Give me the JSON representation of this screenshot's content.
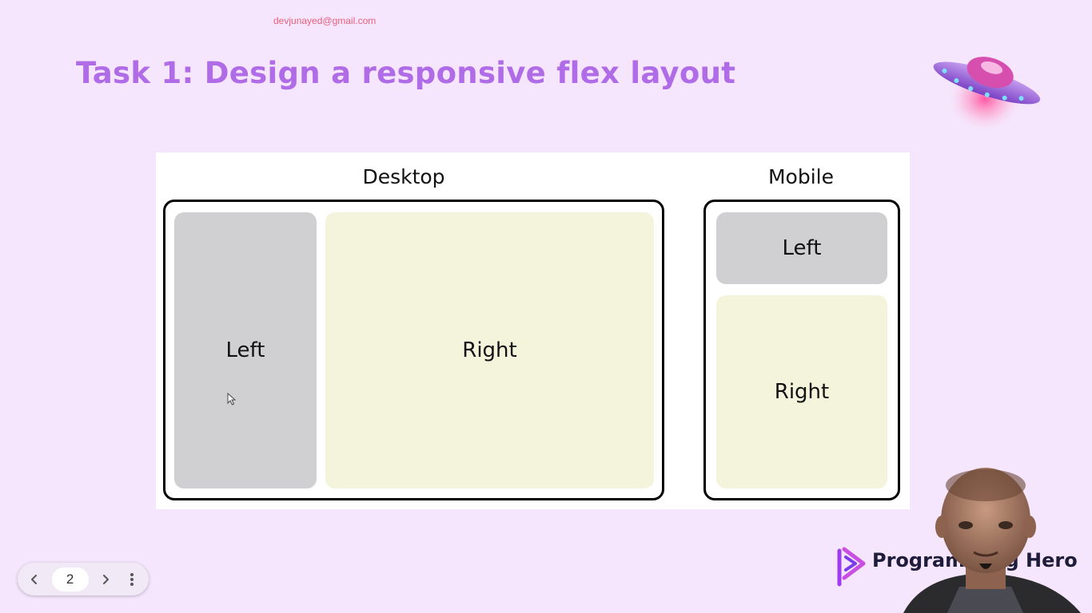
{
  "watermark": {
    "email": "devjunayed@gmail.com"
  },
  "slide": {
    "title": "Task 1: Design a responsive flex layout"
  },
  "diagram": {
    "desktop": {
      "heading": "Desktop",
      "left_label": "Left",
      "right_label": "Right"
    },
    "mobile": {
      "heading": "Mobile",
      "left_label": "Left",
      "right_label": "Right"
    }
  },
  "navigation": {
    "current_page": "2",
    "prev_icon": "chevron-left-icon",
    "next_icon": "chevron-right-icon",
    "more_icon": "more-vertical-icon"
  },
  "brand": {
    "name": "Programming Hero"
  },
  "colors": {
    "title": "#b06be6",
    "background": "#f5e6fd",
    "left_panel": "#d0d0d2",
    "right_panel": "#f4f4dc",
    "watermark": "#e8607a"
  }
}
